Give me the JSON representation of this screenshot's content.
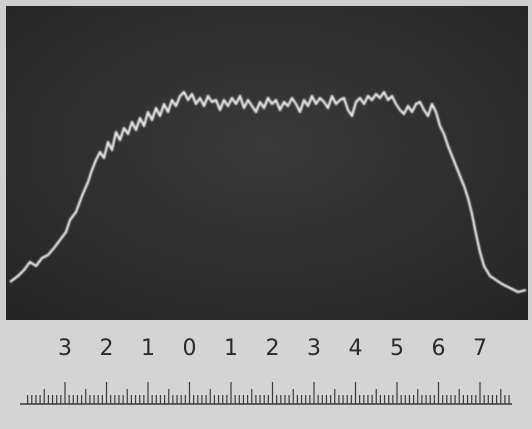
{
  "ruler": {
    "labels": [
      "3",
      "2",
      "1",
      "0",
      "1",
      "2",
      "3",
      "4",
      "5",
      "6",
      "7"
    ]
  }
}
